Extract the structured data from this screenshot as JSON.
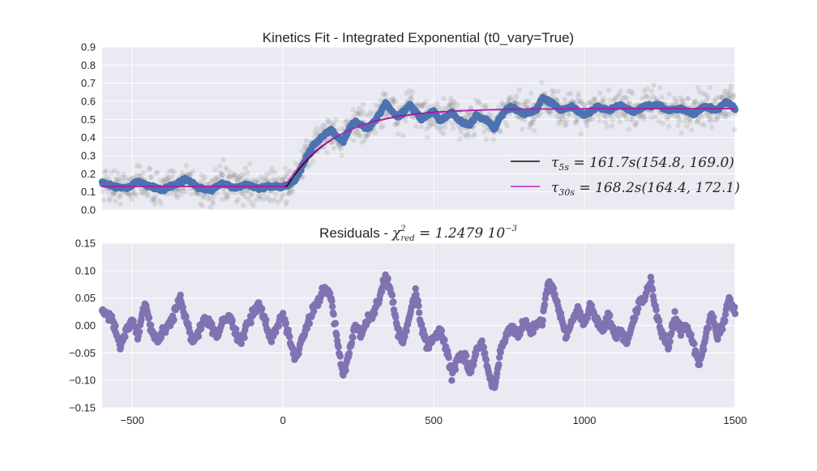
{
  "figure": {
    "background": "#ffffff",
    "axes_background": "#eaeaf2",
    "grid_color": "#ffffff"
  },
  "chart_data": [
    {
      "type": "scatter",
      "title": "Kinetics Fit - Integrated Exponential (t0_vary=True)",
      "xlabel": "",
      "ylabel": "",
      "xlim": [
        -600,
        1500
      ],
      "ylim": [
        0.0,
        0.9
      ],
      "xticks": [],
      "yticks": [
        "0.0",
        "0.1",
        "0.2",
        "0.3",
        "0.4",
        "0.5",
        "0.6",
        "0.7",
        "0.8",
        "0.9"
      ],
      "grid": true,
      "legend_position": "lower-right",
      "colors": {
        "raw": "#808080",
        "smoothed": "#4c72b0",
        "fit5": "#111111",
        "fit30": "#c020c0"
      },
      "model": {
        "baseline": 0.13,
        "plateau": 0.56,
        "t0": 5,
        "tau_5s": 161.7,
        "tau_30s": 168.2
      },
      "smoothed_anchors": [
        [
          -600,
          0.15
        ],
        [
          -560,
          0.13
        ],
        [
          -520,
          0.12
        ],
        [
          -480,
          0.16
        ],
        [
          -440,
          0.13
        ],
        [
          -400,
          0.11
        ],
        [
          -360,
          0.14
        ],
        [
          -320,
          0.17
        ],
        [
          -280,
          0.12
        ],
        [
          -240,
          0.11
        ],
        [
          -200,
          0.15
        ],
        [
          -160,
          0.12
        ],
        [
          -120,
          0.14
        ],
        [
          -80,
          0.12
        ],
        [
          -40,
          0.13
        ],
        [
          0,
          0.13
        ],
        [
          20,
          0.14
        ],
        [
          40,
          0.16
        ],
        [
          60,
          0.23
        ],
        [
          80,
          0.3
        ],
        [
          100,
          0.36
        ],
        [
          120,
          0.39
        ],
        [
          140,
          0.42
        ],
        [
          160,
          0.44
        ],
        [
          180,
          0.4
        ],
        [
          200,
          0.38
        ],
        [
          220,
          0.45
        ],
        [
          240,
          0.49
        ],
        [
          260,
          0.47
        ],
        [
          280,
          0.45
        ],
        [
          300,
          0.48
        ],
        [
          320,
          0.53
        ],
        [
          340,
          0.59
        ],
        [
          360,
          0.55
        ],
        [
          380,
          0.51
        ],
        [
          400,
          0.54
        ],
        [
          420,
          0.58
        ],
        [
          440,
          0.54
        ],
        [
          460,
          0.5
        ],
        [
          480,
          0.52
        ],
        [
          500,
          0.55
        ],
        [
          520,
          0.49
        ],
        [
          540,
          0.51
        ],
        [
          560,
          0.54
        ],
        [
          580,
          0.5
        ],
        [
          600,
          0.48
        ],
        [
          620,
          0.47
        ],
        [
          640,
          0.52
        ],
        [
          660,
          0.51
        ],
        [
          680,
          0.49
        ],
        [
          700,
          0.45
        ],
        [
          720,
          0.51
        ],
        [
          740,
          0.55
        ],
        [
          760,
          0.57
        ],
        [
          800,
          0.53
        ],
        [
          840,
          0.55
        ],
        [
          860,
          0.62
        ],
        [
          880,
          0.6
        ],
        [
          900,
          0.58
        ],
        [
          920,
          0.55
        ],
        [
          960,
          0.57
        ],
        [
          1000,
          0.52
        ],
        [
          1040,
          0.57
        ],
        [
          1080,
          0.55
        ],
        [
          1120,
          0.58
        ],
        [
          1160,
          0.54
        ],
        [
          1200,
          0.57
        ],
        [
          1240,
          0.58
        ],
        [
          1280,
          0.55
        ],
        [
          1320,
          0.56
        ],
        [
          1360,
          0.53
        ],
        [
          1400,
          0.57
        ],
        [
          1440,
          0.55
        ],
        [
          1470,
          0.6
        ],
        [
          1500,
          0.56
        ]
      ],
      "legend": [
        {
          "label_base": "τ",
          "label_sub": "5s",
          "label_rest": " = 161.7s(154.8, 169.0)",
          "color": "#111111"
        },
        {
          "label_base": "τ",
          "label_sub": "30s",
          "label_rest": " = 168.2s(164.4, 172.1)",
          "color": "#c020c0"
        }
      ]
    },
    {
      "type": "scatter",
      "title_prefix": "Residuals - ",
      "title_math_base": "χ",
      "title_math_sup": "2",
      "title_math_sub": "red",
      "title_math_rest": " = 1.2479 10",
      "title_math_exp": "−3",
      "xlabel": "",
      "ylabel": "",
      "xlim": [
        -600,
        1500
      ],
      "ylim": [
        -0.15,
        0.15
      ],
      "xticks": [
        "−500",
        "0",
        "500",
        "1000",
        "1500"
      ],
      "yticks": [
        "−0.15",
        "−0.10",
        "−0.05",
        "0.00",
        "0.05",
        "0.10",
        "0.15"
      ],
      "grid": true,
      "color": "#8172b2",
      "residual_anchors": [
        [
          -600,
          0.03
        ],
        [
          -580,
          0.02
        ],
        [
          -560,
          0.0
        ],
        [
          -540,
          -0.04
        ],
        [
          -520,
          -0.01
        ],
        [
          -500,
          0.01
        ],
        [
          -480,
          -0.02
        ],
        [
          -460,
          0.04
        ],
        [
          -440,
          0.0
        ],
        [
          -420,
          -0.03
        ],
        [
          -400,
          -0.01
        ],
        [
          -380,
          0.0
        ],
        [
          -360,
          0.02
        ],
        [
          -340,
          0.05
        ],
        [
          -320,
          0.01
        ],
        [
          -300,
          -0.03
        ],
        [
          -280,
          -0.01
        ],
        [
          -260,
          0.01
        ],
        [
          -240,
          0.0
        ],
        [
          -220,
          -0.02
        ],
        [
          -200,
          0.01
        ],
        [
          -180,
          0.02
        ],
        [
          -160,
          -0.01
        ],
        [
          -140,
          -0.03
        ],
        [
          -120,
          0.0
        ],
        [
          -100,
          0.02
        ],
        [
          -80,
          0.04
        ],
        [
          -60,
          0.01
        ],
        [
          -40,
          -0.03
        ],
        [
          -20,
          0.0
        ],
        [
          0,
          0.02
        ],
        [
          20,
          -0.02
        ],
        [
          40,
          -0.06
        ],
        [
          60,
          -0.03
        ],
        [
          80,
          0.0
        ],
        [
          100,
          0.03
        ],
        [
          120,
          0.05
        ],
        [
          140,
          0.07
        ],
        [
          160,
          0.05
        ],
        [
          180,
          -0.03
        ],
        [
          200,
          -0.09
        ],
        [
          220,
          -0.05
        ],
        [
          240,
          0.0
        ],
        [
          260,
          -0.02
        ],
        [
          280,
          0.01
        ],
        [
          300,
          0.02
        ],
        [
          320,
          0.05
        ],
        [
          340,
          0.09
        ],
        [
          360,
          0.06
        ],
        [
          380,
          -0.01
        ],
        [
          400,
          -0.03
        ],
        [
          420,
          0.02
        ],
        [
          440,
          0.06
        ],
        [
          460,
          0.0
        ],
        [
          480,
          -0.04
        ],
        [
          500,
          -0.02
        ],
        [
          520,
          -0.01
        ],
        [
          540,
          -0.04
        ],
        [
          560,
          -0.09
        ],
        [
          580,
          -0.06
        ],
        [
          600,
          -0.05
        ],
        [
          620,
          -0.09
        ],
        [
          640,
          -0.05
        ],
        [
          660,
          -0.03
        ],
        [
          680,
          -0.08
        ],
        [
          700,
          -0.12
        ],
        [
          720,
          -0.05
        ],
        [
          740,
          -0.02
        ],
        [
          760,
          0.0
        ],
        [
          780,
          -0.02
        ],
        [
          800,
          0.01
        ],
        [
          820,
          -0.01
        ],
        [
          840,
          0.0
        ],
        [
          860,
          0.01
        ],
        [
          880,
          0.08
        ],
        [
          900,
          0.06
        ],
        [
          920,
          0.02
        ],
        [
          940,
          -0.02
        ],
        [
          960,
          0.01
        ],
        [
          980,
          0.03
        ],
        [
          1000,
          0.0
        ],
        [
          1020,
          0.04
        ],
        [
          1040,
          0.01
        ],
        [
          1060,
          -0.01
        ],
        [
          1080,
          0.02
        ],
        [
          1100,
          -0.02
        ],
        [
          1120,
          -0.01
        ],
        [
          1140,
          -0.03
        ],
        [
          1160,
          0.0
        ],
        [
          1180,
          0.04
        ],
        [
          1200,
          0.05
        ],
        [
          1220,
          0.08
        ],
        [
          1240,
          0.02
        ],
        [
          1260,
          -0.02
        ],
        [
          1280,
          -0.04
        ],
        [
          1300,
          0.02
        ],
        [
          1320,
          -0.01
        ],
        [
          1340,
          0.0
        ],
        [
          1360,
          -0.03
        ],
        [
          1380,
          -0.07
        ],
        [
          1400,
          -0.03
        ],
        [
          1420,
          0.02
        ],
        [
          1440,
          -0.02
        ],
        [
          1460,
          0.0
        ],
        [
          1480,
          0.05
        ],
        [
          1500,
          0.02
        ]
      ]
    }
  ]
}
